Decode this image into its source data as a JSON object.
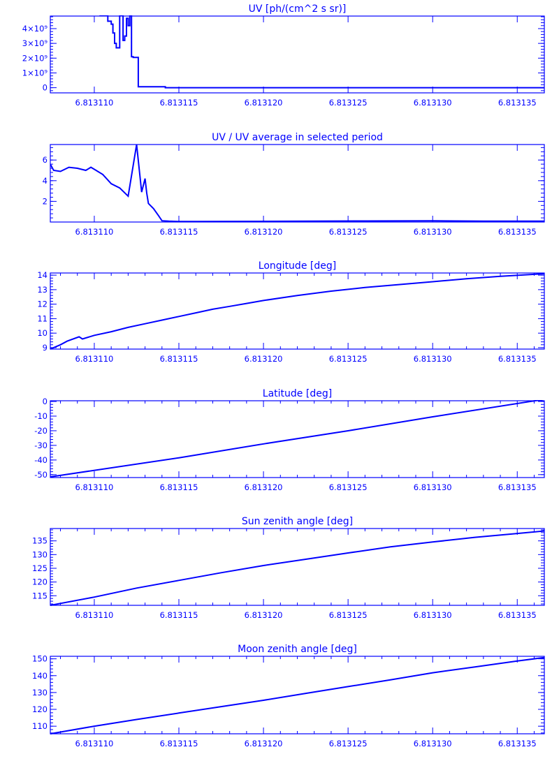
{
  "colors": {
    "foreground": "#0000ff",
    "background": "#ffffff"
  },
  "chart_data": [
    {
      "type": "line",
      "title": "UV [ph/(cm^2 s sr)]",
      "xlabel": "",
      "ylabel": "",
      "xlim": [
        6.8131074,
        6.8131366
      ],
      "ylim": [
        -350000000,
        4850000000
      ],
      "xtick_values": [
        6.81311,
        6.813115,
        6.81312,
        6.813125,
        6.81313,
        6.813135
      ],
      "xtick_labels": [
        "6.813110",
        "6.813115",
        "6.813120",
        "6.813125",
        "6.813130",
        "6.813135"
      ],
      "ytick_values": [
        0,
        1000000000,
        2000000000,
        3000000000,
        4000000000
      ],
      "ytick_labels": [
        "0",
        "1×10⁹",
        "2×10⁹",
        "3×10⁹",
        "4×10⁹"
      ],
      "x_minor_ticks": false,
      "y_minor_ticks_right": true,
      "stepped": true,
      "series": [
        {
          "x": [
            6.8131103,
            6.8131108,
            6.813111,
            6.8131111,
            6.8131112,
            6.8131113,
            6.8131115,
            6.8131117,
            6.8131118,
            6.8131119,
            6.813112,
            6.8131121,
            6.8131122,
            6.8131123,
            6.8131124,
            6.8131125,
            6.8131126,
            6.813113,
            6.813114,
            6.8131142,
            6.813115,
            6.8131366
          ],
          "y": [
            4900000000,
            4500000000,
            4300000000,
            3700000000,
            3000000000,
            2700000000,
            4900000000,
            3200000000,
            3500000000,
            4700000000,
            4200000000,
            4900000000,
            2100000000,
            2050000000,
            2050000000,
            2050000000,
            60000000,
            60000000,
            60000000,
            0,
            0,
            0
          ]
        }
      ]
    },
    {
      "type": "line",
      "title": "UV / UV average in selected period",
      "xlabel": "",
      "ylabel": "",
      "xlim": [
        6.8131074,
        6.8131366
      ],
      "ylim": [
        0,
        7.5
      ],
      "xtick_values": [
        6.81311,
        6.813115,
        6.81312,
        6.813125,
        6.81313,
        6.813135
      ],
      "xtick_labels": [
        "6.813110",
        "6.813115",
        "6.813120",
        "6.813125",
        "6.813130",
        "6.813135"
      ],
      "ytick_values": [
        2,
        4,
        6
      ],
      "ytick_labels": [
        "2",
        "4",
        "6"
      ],
      "x_minor_ticks": false,
      "y_minor_ticks_right": true,
      "series": [
        {
          "x": [
            6.8131074,
            6.8131076,
            6.813108,
            6.8131085,
            6.813109,
            6.8131095,
            6.8131098,
            6.81311,
            6.8131105,
            6.813111,
            6.8131115,
            6.813112,
            6.8131125,
            6.8131128,
            6.813113,
            6.8131131,
            6.8131132,
            6.8131135,
            6.8131138,
            6.813114,
            6.8131144,
            6.813115,
            6.8131155,
            6.813116,
            6.813126,
            6.81313,
            6.813133,
            6.8131366
          ],
          "y": [
            5.6,
            5.0,
            4.9,
            5.3,
            5.2,
            5.0,
            5.3,
            5.1,
            4.6,
            3.7,
            3.3,
            2.5,
            7.5,
            2.9,
            4.2,
            2.8,
            1.8,
            1.3,
            0.6,
            0.12,
            0.08,
            0.05,
            0.05,
            0.05,
            0.1,
            0.12,
            0.08,
            0.08
          ]
        }
      ]
    },
    {
      "type": "line",
      "title": "Longitude [deg]",
      "xlabel": "",
      "ylabel": "",
      "xlim": [
        6.8131074,
        6.8131366
      ],
      "ylim": [
        8.9,
        14.15
      ],
      "xtick_values": [
        6.81311,
        6.813115,
        6.81312,
        6.813125,
        6.81313,
        6.813135
      ],
      "xtick_labels": [
        "6.813110",
        "6.813115",
        "6.813120",
        "6.813125",
        "6.813130",
        "6.813135"
      ],
      "ytick_values": [
        9,
        10,
        11,
        12,
        13,
        14
      ],
      "ytick_labels": [
        "9",
        "10",
        "11",
        "12",
        "13",
        "14"
      ],
      "x_minor_ticks": true,
      "y_minor_ticks_right": true,
      "series": [
        {
          "x": [
            6.8131074,
            6.813108,
            6.8131084,
            6.8131091,
            6.8131093,
            6.81311,
            6.813111,
            6.813112,
            6.813113,
            6.813114,
            6.813115,
            6.813116,
            6.813117,
            6.813118,
            6.813119,
            6.81312,
            6.813122,
            6.813124,
            6.813126,
            6.813128,
            6.81313,
            6.813132,
            6.813134,
            6.8131366
          ],
          "y": [
            8.9,
            9.2,
            9.45,
            9.75,
            9.6,
            9.85,
            10.1,
            10.4,
            10.65,
            10.9,
            11.15,
            11.4,
            11.65,
            11.85,
            12.05,
            12.25,
            12.6,
            12.9,
            13.15,
            13.35,
            13.55,
            13.75,
            13.92,
            14.1
          ]
        }
      ]
    },
    {
      "type": "line",
      "title": "Latitude [deg]",
      "xlabel": "",
      "ylabel": "",
      "xlim": [
        6.8131074,
        6.8131366
      ],
      "ylim": [
        -52,
        0.5
      ],
      "xtick_values": [
        6.81311,
        6.813115,
        6.81312,
        6.813125,
        6.81313,
        6.813135
      ],
      "xtick_labels": [
        "6.813110",
        "6.813115",
        "6.813120",
        "6.813125",
        "6.813130",
        "6.813135"
      ],
      "ytick_values": [
        -50,
        -40,
        -30,
        -20,
        -10,
        0
      ],
      "ytick_labels": [
        "-50",
        "-40",
        "-30",
        "-20",
        "-10",
        "0"
      ],
      "x_minor_ticks": true,
      "y_minor_ticks_right": true,
      "series": [
        {
          "x": [
            6.8131074,
            6.813115,
            6.81312,
            6.813125,
            6.81313,
            6.8131366
          ],
          "y": [
            -51.5,
            -38.5,
            -29.0,
            -20.0,
            -10.5,
            1.5
          ]
        }
      ]
    },
    {
      "type": "line",
      "title": "Sun zenith angle [deg]",
      "xlabel": "",
      "ylabel": "",
      "xlim": [
        6.8131074,
        6.8131366
      ],
      "ylim": [
        111.5,
        139.5
      ],
      "xtick_values": [
        6.81311,
        6.813115,
        6.81312,
        6.813125,
        6.81313,
        6.813135
      ],
      "xtick_labels": [
        "6.813110",
        "6.813115",
        "6.813120",
        "6.813125",
        "6.813130",
        "6.813135"
      ],
      "ytick_values": [
        115,
        120,
        125,
        130,
        135
      ],
      "ytick_labels": [
        "115",
        "120",
        "125",
        "130",
        "135"
      ],
      "x_minor_ticks": true,
      "y_minor_ticks_right": true,
      "series": [
        {
          "x": [
            6.8131074,
            6.81311,
            6.8131125,
            6.813115,
            6.8131175,
            6.81312,
            6.8131225,
            6.813125,
            6.8131275,
            6.81313,
            6.8131325,
            6.813135,
            6.8131366
          ],
          "y": [
            111.5,
            114.5,
            117.8,
            120.6,
            123.4,
            126.0,
            128.3,
            130.6,
            132.8,
            134.6,
            136.3,
            137.7,
            138.6
          ]
        }
      ]
    },
    {
      "type": "line",
      "title": "Moon zenith angle [deg]",
      "xlabel": "",
      "ylabel": "",
      "xlim": [
        6.8131074,
        6.8131366
      ],
      "ylim": [
        105.5,
        151.5
      ],
      "xtick_values": [
        6.81311,
        6.813115,
        6.81312,
        6.813125,
        6.81313,
        6.813135
      ],
      "xtick_labels": [
        "6.813110",
        "6.813115",
        "6.813120",
        "6.813125",
        "6.813130",
        "6.813135"
      ],
      "ytick_values": [
        110,
        120,
        130,
        140,
        150
      ],
      "ytick_labels": [
        "110",
        "120",
        "130",
        "140",
        "150"
      ],
      "x_minor_ticks": true,
      "y_minor_ticks_right": true,
      "series": [
        {
          "x": [
            6.8131074,
            6.81311,
            6.8131125,
            6.813115,
            6.8131175,
            6.81312,
            6.8131225,
            6.813125,
            6.8131275,
            6.81313,
            6.8131325,
            6.813135,
            6.8131366
          ],
          "y": [
            105.5,
            110.0,
            114.0,
            117.8,
            121.6,
            125.4,
            129.5,
            133.5,
            137.5,
            141.7,
            145.2,
            148.7,
            150.8
          ]
        }
      ]
    }
  ]
}
